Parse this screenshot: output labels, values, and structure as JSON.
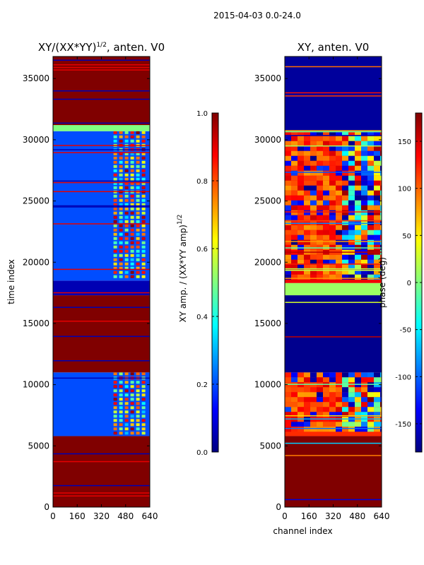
{
  "suptitle": "2015-04-03 0.0-24.0",
  "chart_data": [
    {
      "type": "heatmap",
      "title": "XY/(XX*YY)",
      "title_sup": "1/2",
      "title_suffix": ", anten. V0",
      "xlabel": "",
      "ylabel": "time index",
      "xlim": [
        0,
        640
      ],
      "ylim": [
        0,
        36800
      ],
      "xticks": [
        "0",
        "160",
        "320",
        "480",
        "640"
      ],
      "yticks": [
        "0",
        "5000",
        "10000",
        "15000",
        "20000",
        "25000",
        "30000",
        "35000"
      ],
      "colorbar": {
        "label": "XY amp. / (XX*YY amp)",
        "label_sup": "1/2",
        "range": [
          0,
          1
        ],
        "ticks": [
          "0.0",
          "0.2",
          "0.4",
          "0.6",
          "0.8",
          "1.0"
        ],
        "colormap": "jet"
      },
      "regions": [
        {
          "y": [
            0,
            5800
          ],
          "value": 1.0
        },
        {
          "y": [
            5800,
            11000
          ],
          "value": 0.2,
          "bright_channels": [
            400,
            620
          ]
        },
        {
          "y": [
            11000,
            17300
          ],
          "value": 1.0
        },
        {
          "y": [
            17300,
            18500
          ],
          "value": 0.05
        },
        {
          "y": [
            18500,
            30700
          ],
          "value": 0.2,
          "bright_channels": [
            400,
            620
          ]
        },
        {
          "y": [
            30700,
            31200
          ],
          "value": 0.5
        },
        {
          "y": [
            31200,
            36800
          ],
          "value": 1.0
        }
      ]
    },
    {
      "type": "heatmap",
      "title": "XY, anten. V0",
      "xlabel": "channel index",
      "ylabel": "phase (deg)",
      "xlim": [
        0,
        640
      ],
      "ylim": [
        0,
        36800
      ],
      "xticks": [
        "0",
        "160",
        "320",
        "480",
        "640"
      ],
      "yticks": [
        "0",
        "5000",
        "10000",
        "15000",
        "20000",
        "25000",
        "30000",
        "35000"
      ],
      "colorbar": {
        "label": "phase (deg)",
        "range": [
          -180,
          180
        ],
        "ticks": [
          "-150",
          "-100",
          "-50",
          "0",
          "50",
          "100",
          "150"
        ],
        "colormap": "jet"
      },
      "regions": [
        {
          "y": [
            0,
            5800
          ],
          "value": 180
        },
        {
          "y": [
            5800,
            11000
          ],
          "value": 120
        },
        {
          "y": [
            11000,
            17300
          ],
          "value": -175
        },
        {
          "y": [
            17300,
            18300
          ],
          "value": 10
        },
        {
          "y": [
            18300,
            30700
          ],
          "value": 140
        },
        {
          "y": [
            30700,
            36800
          ],
          "value": -170
        }
      ]
    }
  ]
}
